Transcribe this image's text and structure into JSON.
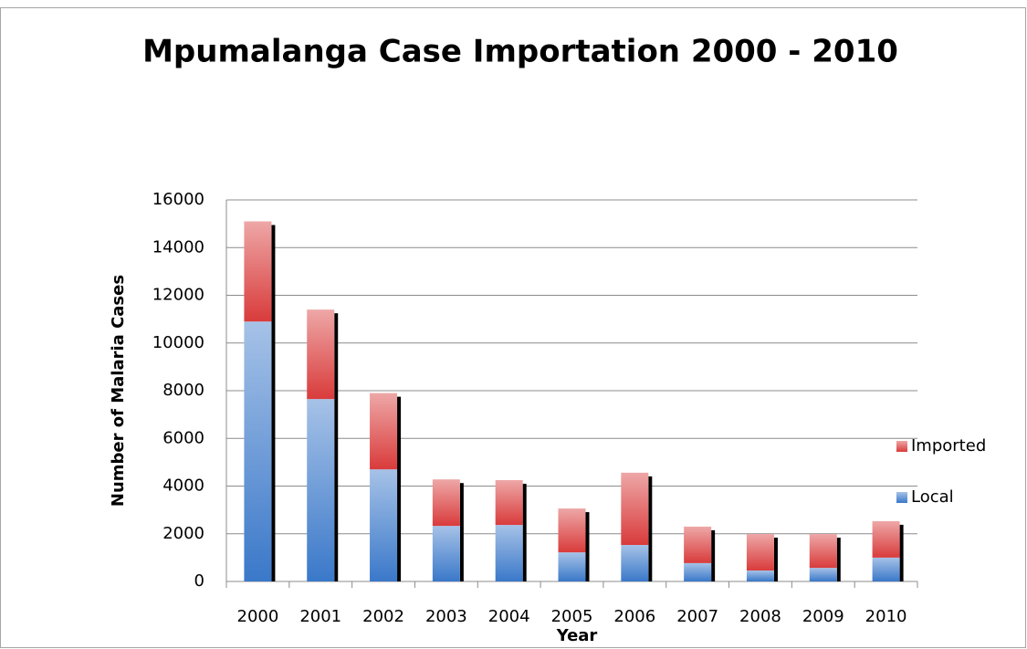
{
  "chart_data": {
    "type": "stacked_bar",
    "title": "Mpumalanga Case Importation 2000 - 2010",
    "x_label": "Year",
    "y_label": "Number of Malaria Cases",
    "categories": [
      "2000",
      "2001",
      "2002",
      "2003",
      "2004",
      "2005",
      "2006",
      "2007",
      "2008",
      "2009",
      "2010"
    ],
    "series": [
      {
        "name": "Local",
        "color": "#3a78c9",
        "values": [
          10900,
          7650,
          4700,
          2330,
          2370,
          1220,
          1530,
          770,
          460,
          570,
          1000
        ]
      },
      {
        "name": "Imported",
        "color": "#d93b3b",
        "values": [
          4200,
          3750,
          3200,
          1950,
          1880,
          1840,
          3030,
          1530,
          1530,
          1420,
          1530
        ]
      }
    ],
    "ylim": [
      0,
      16000
    ],
    "yticks": [
      0,
      2000,
      4000,
      6000,
      8000,
      10000,
      12000,
      14000,
      16000
    ],
    "grid": true,
    "legend": "right"
  }
}
